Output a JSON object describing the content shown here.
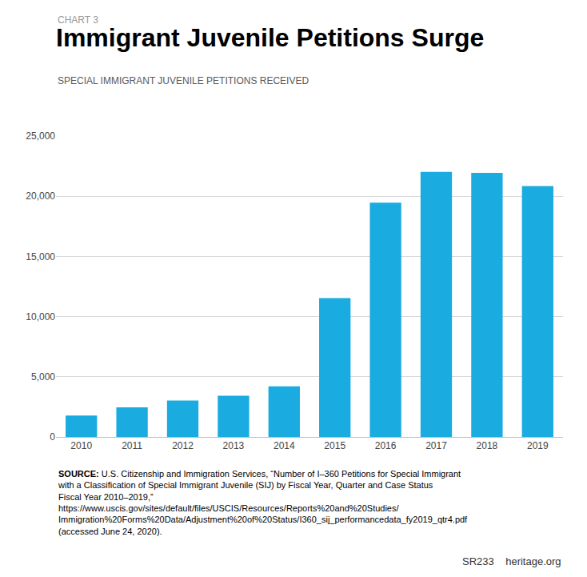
{
  "chart_data": {
    "type": "bar",
    "title": "Immigrant Juvenile Petitions Surge",
    "subtitle": "SPECIAL IMMIGRANT JUVENILE PETITIONS RECEIVED",
    "annotations": [
      "CHART 3",
      "SOURCE: U.S. Citizenship and Immigration Services, “Number of I–360 Petitions for Special Immigrant with a Classification of Special Immigrant Juvenile (SIJ) by Fiscal Year, Quarter and Case Status Fiscal Year 2010–2019,” https://www.uscis.gov/sites/default/files/USCIS/Resources/Reports%20and%20Studies/Immigration%20Forms%20Data/Adjustment%20of%20Status/I360_sij_performancedata_fy2019_qtr4.pdf (accessed June 24, 2020).",
      "SR233    heritage.org"
    ],
    "categories": [
      "2010",
      "2011",
      "2012",
      "2013",
      "2014",
      "2015",
      "2016",
      "2017",
      "2018",
      "2019"
    ],
    "values": [
      1786,
      2460,
      3020,
      3431,
      4202,
      11542,
      19463,
      22030,
      21945,
      20847
    ],
    "color": "#1aabe0",
    "ylim": [
      0,
      25000
    ],
    "yticks": [
      0,
      {
        "value": 5000,
        "label": "5,000"
      },
      {
        "value": 10000,
        "label": "10,000"
      },
      {
        "value": 15000,
        "label": "15,000"
      },
      {
        "value": 20000,
        "label": "20,000"
      },
      {
        "value": 25000,
        "label": "25,000"
      }
    ],
    "grid": true
  }
}
